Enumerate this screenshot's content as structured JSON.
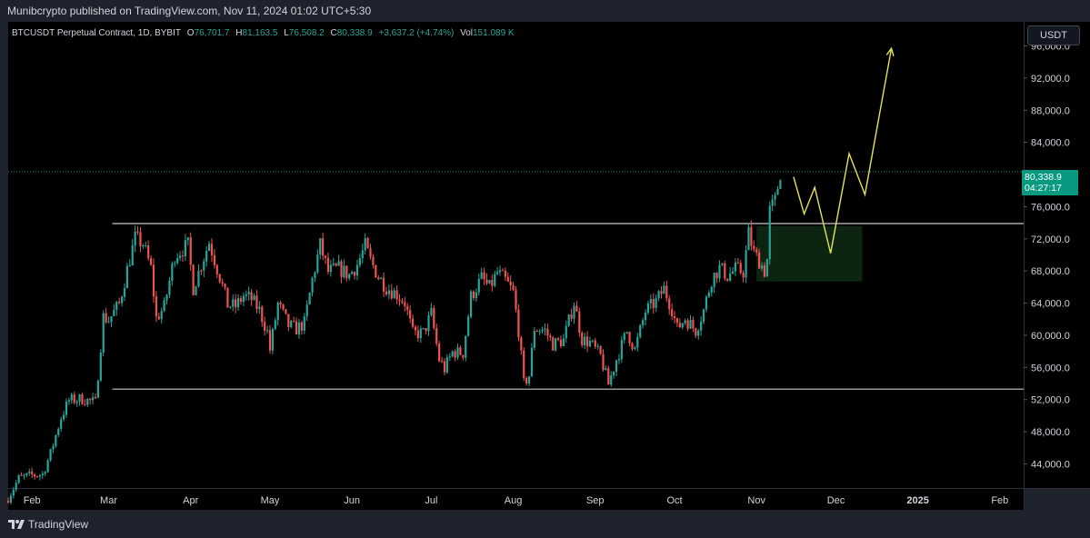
{
  "header": {
    "publisher_line": "Munibcrypto published on TradingView.com, Nov 11, 2024 01:02 UTC+5:30"
  },
  "legend": {
    "symbol": "BTCUSDT Perpetual Contract, 1D, BYBIT",
    "o_label": "O",
    "o_value": "76,701.7",
    "h_label": "H",
    "h_value": "81,163.5",
    "l_label": "L",
    "l_value": "76,508.2",
    "c_label": "C",
    "c_value": "80,338.9",
    "change": "+3,637.2 (+4.74%)",
    "vol_label": "Vol",
    "vol_value": "151.089 K"
  },
  "currency_button": "USDT",
  "last_price": {
    "price": "80,338.9",
    "countdown": "04:27:17"
  },
  "footer": {
    "brand": "TradingView"
  },
  "colors": {
    "up": "#26a69a",
    "down": "#ef5350",
    "background": "#000000",
    "projection": "#e6e35a",
    "zone": "#0f2a14"
  },
  "chart_data": {
    "type": "candlestick",
    "ylim": [
      41000,
      99000
    ],
    "y_ticks": [
      44000,
      48000,
      52000,
      56000,
      60000,
      64000,
      68000,
      72000,
      76000,
      80000,
      84000,
      88000,
      92000,
      96000
    ],
    "y_tick_labels": [
      "44,000.0",
      "48,000.0",
      "52,000.0",
      "56,000.0",
      "60,000.0",
      "64,000.0",
      "68,000.0",
      "72,000.0",
      "76,000.0",
      "80,000.0",
      "84,000.0",
      "88,000.0",
      "92,000.0",
      "96,000.0"
    ],
    "x_ticks": [
      "2024-02-01",
      "2024-03-01",
      "2024-04-01",
      "2024-05-01",
      "2024-06-01",
      "2024-07-01",
      "2024-08-01",
      "2024-09-01",
      "2024-10-01",
      "2024-11-01",
      "2024-12-01",
      "2025-01-01",
      "2025-02-01"
    ],
    "x_tick_labels": [
      "Feb",
      "Mar",
      "Apr",
      "May",
      "Jun",
      "Jul",
      "Aug",
      "Sep",
      "Oct",
      "Nov",
      "Dec",
      "2025",
      "Feb"
    ],
    "x_range": [
      "2024-01-23",
      "2025-02-10"
    ],
    "closes": [
      [
        "2024-01-23",
        39800
      ],
      [
        "2024-01-27",
        42200
      ],
      [
        "2024-02-01",
        42600
      ],
      [
        "2024-02-05",
        42700
      ],
      [
        "2024-02-08",
        45300
      ],
      [
        "2024-02-12",
        49800
      ],
      [
        "2024-02-15",
        51900
      ],
      [
        "2024-02-20",
        52100
      ],
      [
        "2024-02-25",
        51600
      ],
      [
        "2024-02-28",
        62300
      ],
      [
        "2024-03-01",
        61900
      ],
      [
        "2024-03-05",
        63900
      ],
      [
        "2024-03-08",
        68200
      ],
      [
        "2024-03-11",
        72100
      ],
      [
        "2024-03-14",
        71400
      ],
      [
        "2024-03-17",
        68300
      ],
      [
        "2024-03-19",
        62100
      ],
      [
        "2024-03-22",
        63500
      ],
      [
        "2024-03-26",
        70000
      ],
      [
        "2024-03-31",
        71200
      ],
      [
        "2024-04-02",
        65900
      ],
      [
        "2024-04-05",
        68800
      ],
      [
        "2024-04-08",
        71600
      ],
      [
        "2024-04-12",
        67300
      ],
      [
        "2024-04-15",
        63800
      ],
      [
        "2024-04-18",
        63600
      ],
      [
        "2024-04-21",
        64900
      ],
      [
        "2024-04-24",
        64500
      ],
      [
        "2024-04-27",
        63100
      ],
      [
        "2024-04-30",
        60400
      ],
      [
        "2024-05-01",
        58200
      ],
      [
        "2024-05-04",
        63900
      ],
      [
        "2024-05-08",
        61200
      ],
      [
        "2024-05-11",
        60800
      ],
      [
        "2024-05-14",
        61500
      ],
      [
        "2024-05-17",
        66900
      ],
      [
        "2024-05-20",
        71200
      ],
      [
        "2024-05-23",
        67900
      ],
      [
        "2024-05-27",
        68300
      ],
      [
        "2024-05-31",
        67500
      ],
      [
        "2024-06-03",
        68800
      ],
      [
        "2024-06-06",
        71100
      ],
      [
        "2024-06-08",
        69300
      ],
      [
        "2024-06-11",
        67300
      ],
      [
        "2024-06-14",
        66000
      ],
      [
        "2024-06-18",
        65100
      ],
      [
        "2024-06-21",
        64100
      ],
      [
        "2024-06-24",
        60200
      ],
      [
        "2024-06-28",
        60300
      ],
      [
        "2024-07-01",
        62700
      ],
      [
        "2024-07-04",
        57000
      ],
      [
        "2024-07-06",
        55800
      ],
      [
        "2024-07-09",
        57900
      ],
      [
        "2024-07-13",
        57800
      ],
      [
        "2024-07-16",
        64800
      ],
      [
        "2024-07-20",
        67100
      ],
      [
        "2024-07-23",
        65900
      ],
      [
        "2024-07-26",
        67800
      ],
      [
        "2024-07-29",
        66800
      ],
      [
        "2024-08-01",
        65300
      ],
      [
        "2024-08-03",
        60600
      ],
      [
        "2024-08-05",
        54000
      ],
      [
        "2024-08-07",
        55000
      ],
      [
        "2024-08-09",
        60900
      ],
      [
        "2024-08-13",
        60600
      ],
      [
        "2024-08-16",
        58900
      ],
      [
        "2024-08-20",
        59400
      ],
      [
        "2024-08-24",
        64100
      ],
      [
        "2024-08-27",
        59500
      ],
      [
        "2024-08-30",
        59100
      ],
      [
        "2024-09-03",
        57400
      ],
      [
        "2024-09-06",
        53900
      ],
      [
        "2024-09-09",
        57000
      ],
      [
        "2024-09-13",
        60500
      ],
      [
        "2024-09-16",
        58200
      ],
      [
        "2024-09-20",
        63000
      ],
      [
        "2024-09-24",
        64200
      ],
      [
        "2024-09-27",
        65800
      ],
      [
        "2024-09-30",
        63300
      ],
      [
        "2024-10-02",
        60800
      ],
      [
        "2024-10-05",
        62100
      ],
      [
        "2024-10-09",
        60600
      ],
      [
        "2024-10-12",
        63100
      ],
      [
        "2024-10-15",
        67000
      ],
      [
        "2024-10-18",
        68400
      ],
      [
        "2024-10-21",
        67400
      ],
      [
        "2024-10-24",
        68200
      ],
      [
        "2024-10-27",
        67900
      ],
      [
        "2024-10-29",
        72700
      ],
      [
        "2024-10-31",
        70200
      ],
      [
        "2024-11-02",
        69300
      ],
      [
        "2024-11-04",
        68000
      ],
      [
        "2024-11-05",
        69400
      ],
      [
        "2024-11-06",
        75500
      ],
      [
        "2024-11-08",
        76700
      ],
      [
        "2024-11-10",
        80300
      ]
    ],
    "support_line": 53300,
    "resistance_line": 73900,
    "last_price_line": 80338.9,
    "demand_zone": {
      "x": [
        "2024-11-01",
        "2024-12-11"
      ],
      "y": [
        66700,
        73600
      ]
    },
    "projection_path": [
      [
        "2024-11-15",
        79700
      ],
      [
        "2024-11-19",
        75100
      ],
      [
        "2024-11-23",
        78400
      ],
      [
        "2024-11-29",
        70200
      ],
      [
        "2024-12-06",
        82600
      ],
      [
        "2024-12-12",
        77500
      ],
      [
        "2024-12-22",
        95700
      ]
    ]
  }
}
